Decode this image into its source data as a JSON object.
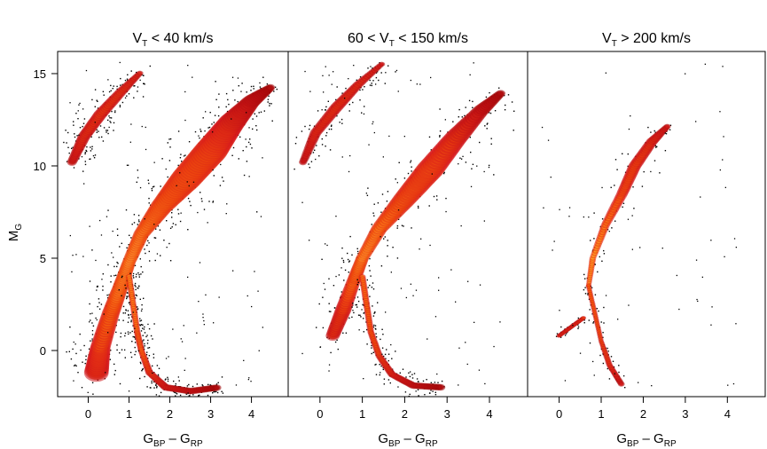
{
  "chart_data": {
    "type": "heatmap",
    "y_axis": {
      "label_main": "M",
      "label_sub": "G",
      "range": [
        16.2,
        -2.5
      ],
      "inverted": true,
      "ticks": [
        0,
        5,
        10,
        15
      ]
    },
    "x_axis": {
      "label_parts": [
        "G",
        "BP",
        " – G",
        "RP"
      ],
      "range": [
        -0.75,
        4.9
      ],
      "ticks": [
        0,
        1,
        2,
        3,
        4
      ],
      "tick_labels": [
        "0",
        "1",
        "2",
        "3",
        "4"
      ]
    },
    "colormap": [
      "#000000",
      "#8b0000",
      "#d7191c",
      "#ff6a00",
      "#ffc040",
      "#fff8c0"
    ],
    "panels": [
      {
        "title_parts": [
          "V",
          "T",
          " < 40 km/s"
        ],
        "density": "high",
        "sequences": [
          {
            "name": "main-sequence",
            "points": [
              [
                0.2,
                -1.2
              ],
              [
                0.3,
                0.2
              ],
              [
                0.55,
                2.0
              ],
              [
                0.8,
                3.5
              ],
              [
                1.0,
                4.8
              ],
              [
                1.3,
                6.3
              ],
              [
                1.8,
                7.8
              ],
              [
                2.4,
                9.3
              ],
              [
                3.0,
                10.8
              ],
              [
                3.5,
                12.3
              ],
              [
                4.0,
                13.5
              ],
              [
                4.5,
                14.3
              ]
            ],
            "width": [
              0.55,
              0.45,
              0.4,
              0.35,
              0.3,
              0.35,
              0.5,
              0.7,
              0.75,
              0.6,
              0.4,
              0.2
            ],
            "peak": [
              0.6,
              0.7,
              0.8,
              0.95,
              1.0,
              0.95,
              0.9,
              0.85,
              0.8,
              0.6,
              0.35,
              0.15
            ]
          },
          {
            "name": "red-giant-branch",
            "points": [
              [
                1.0,
                4.0
              ],
              [
                1.1,
                2.5
              ],
              [
                1.2,
                1.0
              ],
              [
                1.3,
                0.0
              ],
              [
                1.5,
                -1.2
              ],
              [
                1.9,
                -2.0
              ],
              [
                2.5,
                -2.2
              ],
              [
                3.2,
                -2.0
              ]
            ],
            "width": [
              0.15,
              0.15,
              0.15,
              0.15,
              0.18,
              0.2,
              0.2,
              0.2
            ],
            "peak": [
              0.8,
              0.75,
              0.7,
              0.7,
              0.55,
              0.4,
              0.3,
              0.15
            ]
          },
          {
            "name": "white-dwarfs",
            "points": [
              [
                -0.4,
                10.2
              ],
              [
                -0.1,
                11.6
              ],
              [
                0.3,
                12.8
              ],
              [
                0.8,
                14.0
              ],
              [
                1.3,
                15.1
              ]
            ],
            "width": [
              0.22,
              0.28,
              0.3,
              0.25,
              0.15
            ],
            "peak": [
              0.35,
              0.5,
              0.55,
              0.5,
              0.35
            ]
          }
        ]
      },
      {
        "title_parts": [
          "60 < V",
          "T",
          " < 150 km/s"
        ],
        "density": "medium",
        "sequences": [
          {
            "name": "main-sequence",
            "points": [
              [
                0.3,
                0.8
              ],
              [
                0.55,
                2.2
              ],
              [
                0.8,
                3.8
              ],
              [
                1.0,
                5.0
              ],
              [
                1.4,
                6.6
              ],
              [
                2.0,
                8.2
              ],
              [
                2.6,
                9.8
              ],
              [
                3.2,
                11.5
              ],
              [
                3.8,
                13.0
              ],
              [
                4.3,
                14.0
              ]
            ],
            "width": [
              0.3,
              0.35,
              0.3,
              0.28,
              0.35,
              0.5,
              0.6,
              0.5,
              0.35,
              0.2
            ],
            "peak": [
              0.5,
              0.6,
              0.8,
              0.95,
              0.9,
              0.8,
              0.75,
              0.6,
              0.35,
              0.15
            ]
          },
          {
            "name": "red-giant-branch",
            "points": [
              [
                1.0,
                4.0
              ],
              [
                1.1,
                2.5
              ],
              [
                1.2,
                1.0
              ],
              [
                1.4,
                -0.3
              ],
              [
                1.7,
                -1.3
              ],
              [
                2.2,
                -1.9
              ],
              [
                2.9,
                -2.0
              ]
            ],
            "width": [
              0.15,
              0.15,
              0.15,
              0.16,
              0.18,
              0.2,
              0.2
            ],
            "peak": [
              0.7,
              0.65,
              0.6,
              0.55,
              0.45,
              0.3,
              0.15
            ]
          },
          {
            "name": "white-dwarfs",
            "points": [
              [
                -0.4,
                10.2
              ],
              [
                -0.1,
                11.8
              ],
              [
                0.4,
                13.2
              ],
              [
                0.9,
                14.4
              ],
              [
                1.5,
                15.6
              ]
            ],
            "width": [
              0.18,
              0.25,
              0.28,
              0.22,
              0.14
            ],
            "peak": [
              0.3,
              0.45,
              0.5,
              0.45,
              0.3
            ]
          }
        ]
      },
      {
        "title_parts": [
          "V",
          "T",
          " > 200 km/s"
        ],
        "density": "low",
        "sequences": [
          {
            "name": "main-sequence",
            "points": [
              [
                0.7,
                3.5
              ],
              [
                0.8,
                5.0
              ],
              [
                1.1,
                6.8
              ],
              [
                1.5,
                8.5
              ],
              [
                1.8,
                10.0
              ],
              [
                2.2,
                11.3
              ],
              [
                2.6,
                12.2
              ]
            ],
            "width": [
              0.12,
              0.15,
              0.2,
              0.25,
              0.28,
              0.25,
              0.15
            ],
            "peak": [
              0.75,
              0.85,
              0.75,
              0.65,
              0.6,
              0.5,
              0.3
            ]
          },
          {
            "name": "red-giant-branch",
            "points": [
              [
                0.7,
                3.5
              ],
              [
                0.85,
                2.0
              ],
              [
                1.0,
                0.5
              ],
              [
                1.2,
                -0.8
              ],
              [
                1.5,
                -1.9
              ]
            ],
            "width": [
              0.12,
              0.12,
              0.12,
              0.14,
              0.15
            ],
            "peak": [
              0.6,
              0.55,
              0.5,
              0.45,
              0.3
            ]
          },
          {
            "name": "horizontal-branch",
            "points": [
              [
                0.0,
                0.8
              ],
              [
                0.3,
                1.3
              ],
              [
                0.6,
                1.8
              ]
            ],
            "width": [
              0.12,
              0.12,
              0.12
            ],
            "peak": [
              0.4,
              0.4,
              0.45
            ]
          }
        ]
      }
    ]
  }
}
